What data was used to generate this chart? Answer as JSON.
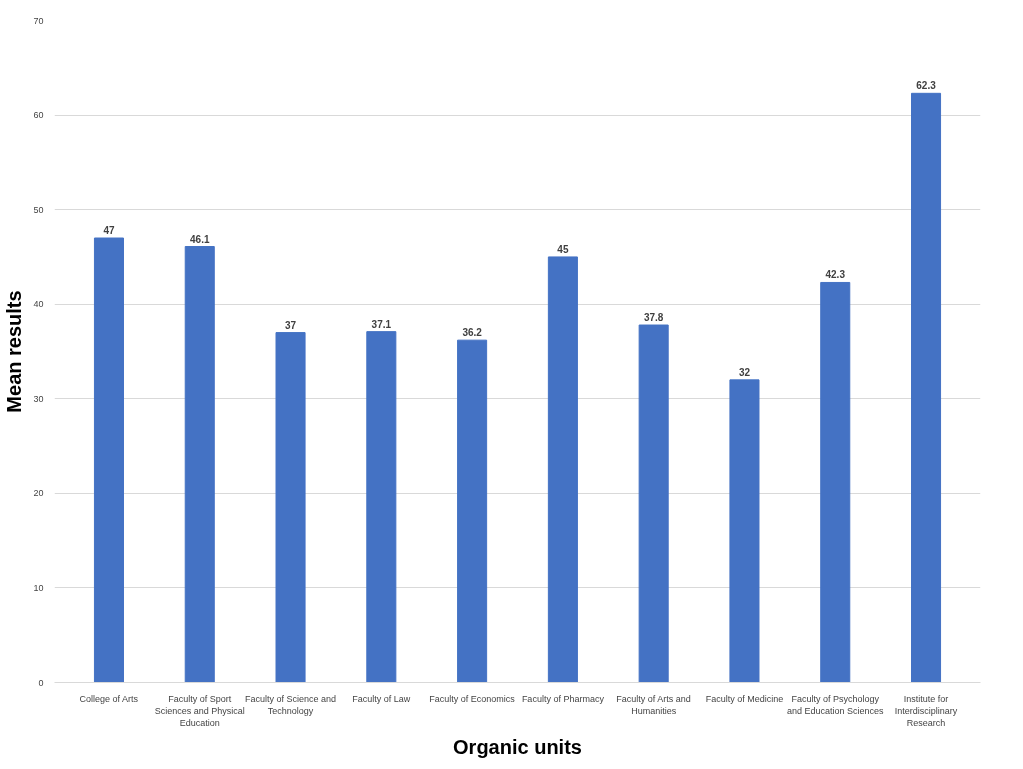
{
  "chart_data": {
    "type": "bar",
    "xlabel": "Organic units",
    "ylabel": "Mean results",
    "categories": [
      "College of Arts",
      "Faculty of Sport Sciences and Physical Education",
      "Faculty of Science and Technology",
      "Faculty of Law",
      "Faculty of Economics",
      "Faculty of Pharmacy",
      "Faculty of Arts and Humanities",
      "Faculty of Medicine",
      "Faculty of Psychology and Education Sciences",
      "Institute for Interdisciplinary Research"
    ],
    "values": [
      47,
      46.1,
      37,
      37.1,
      36.2,
      45,
      37.8,
      32,
      42.3,
      62.3
    ],
    "color": "#4472c4",
    "ylim": [
      0,
      70
    ],
    "yticks": [
      0,
      10,
      20,
      30,
      40,
      50,
      60,
      70
    ],
    "grid": "y",
    "data_labels": true
  }
}
